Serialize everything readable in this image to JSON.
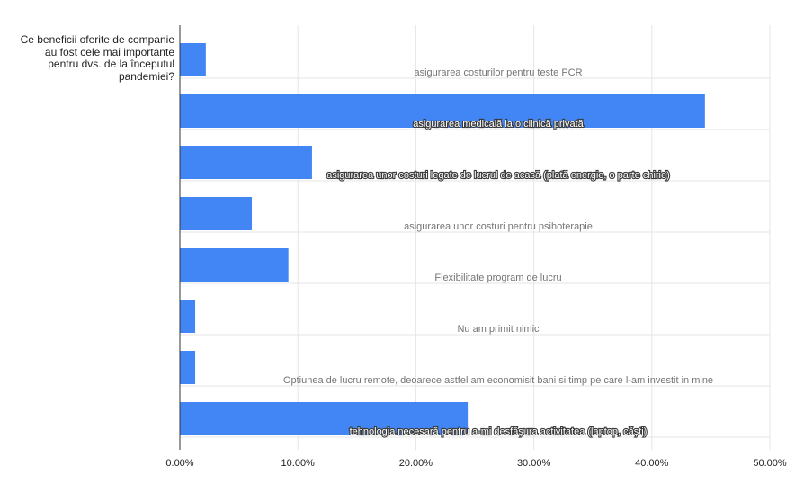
{
  "question": "Ce beneficii oferite de companie au fost cele mai importante pentru dvs. de la începutul pandemiei?",
  "colors": {
    "bar": "#4285f4",
    "grid": "#e5e5e5",
    "axis": "#333333"
  },
  "chart_data": {
    "type": "bar",
    "orientation": "horizontal",
    "title": "",
    "xlabel": "",
    "ylabel": "",
    "xlim": [
      0,
      50
    ],
    "grid": true,
    "legend": "none",
    "x_ticks": [
      "0.00%",
      "10.00%",
      "20.00%",
      "30.00%",
      "40.00%",
      "50.00%"
    ],
    "categories": [
      "asigurarea costurilor pentru teste PCR",
      "asigurarea medicală la o clinică privată",
      "asigurarea unor costuri legate de lucrul de acasă (plată energie, o parte chirie)",
      "asigurarea unor costuri pentru psihoterapie",
      "Flexibilitate program de lucru",
      "Nu am primit nimic",
      "Optiunea de lucru remote, deoarece astfel am economisit bani si timp pe care l-am investit in mine",
      "tehnologia necesară pentru a-mi desfășura activitatea (laptop, căști)"
    ],
    "values": [
      2.2,
      44.5,
      11.2,
      6.1,
      9.2,
      1.3,
      1.3,
      24.4
    ]
  }
}
